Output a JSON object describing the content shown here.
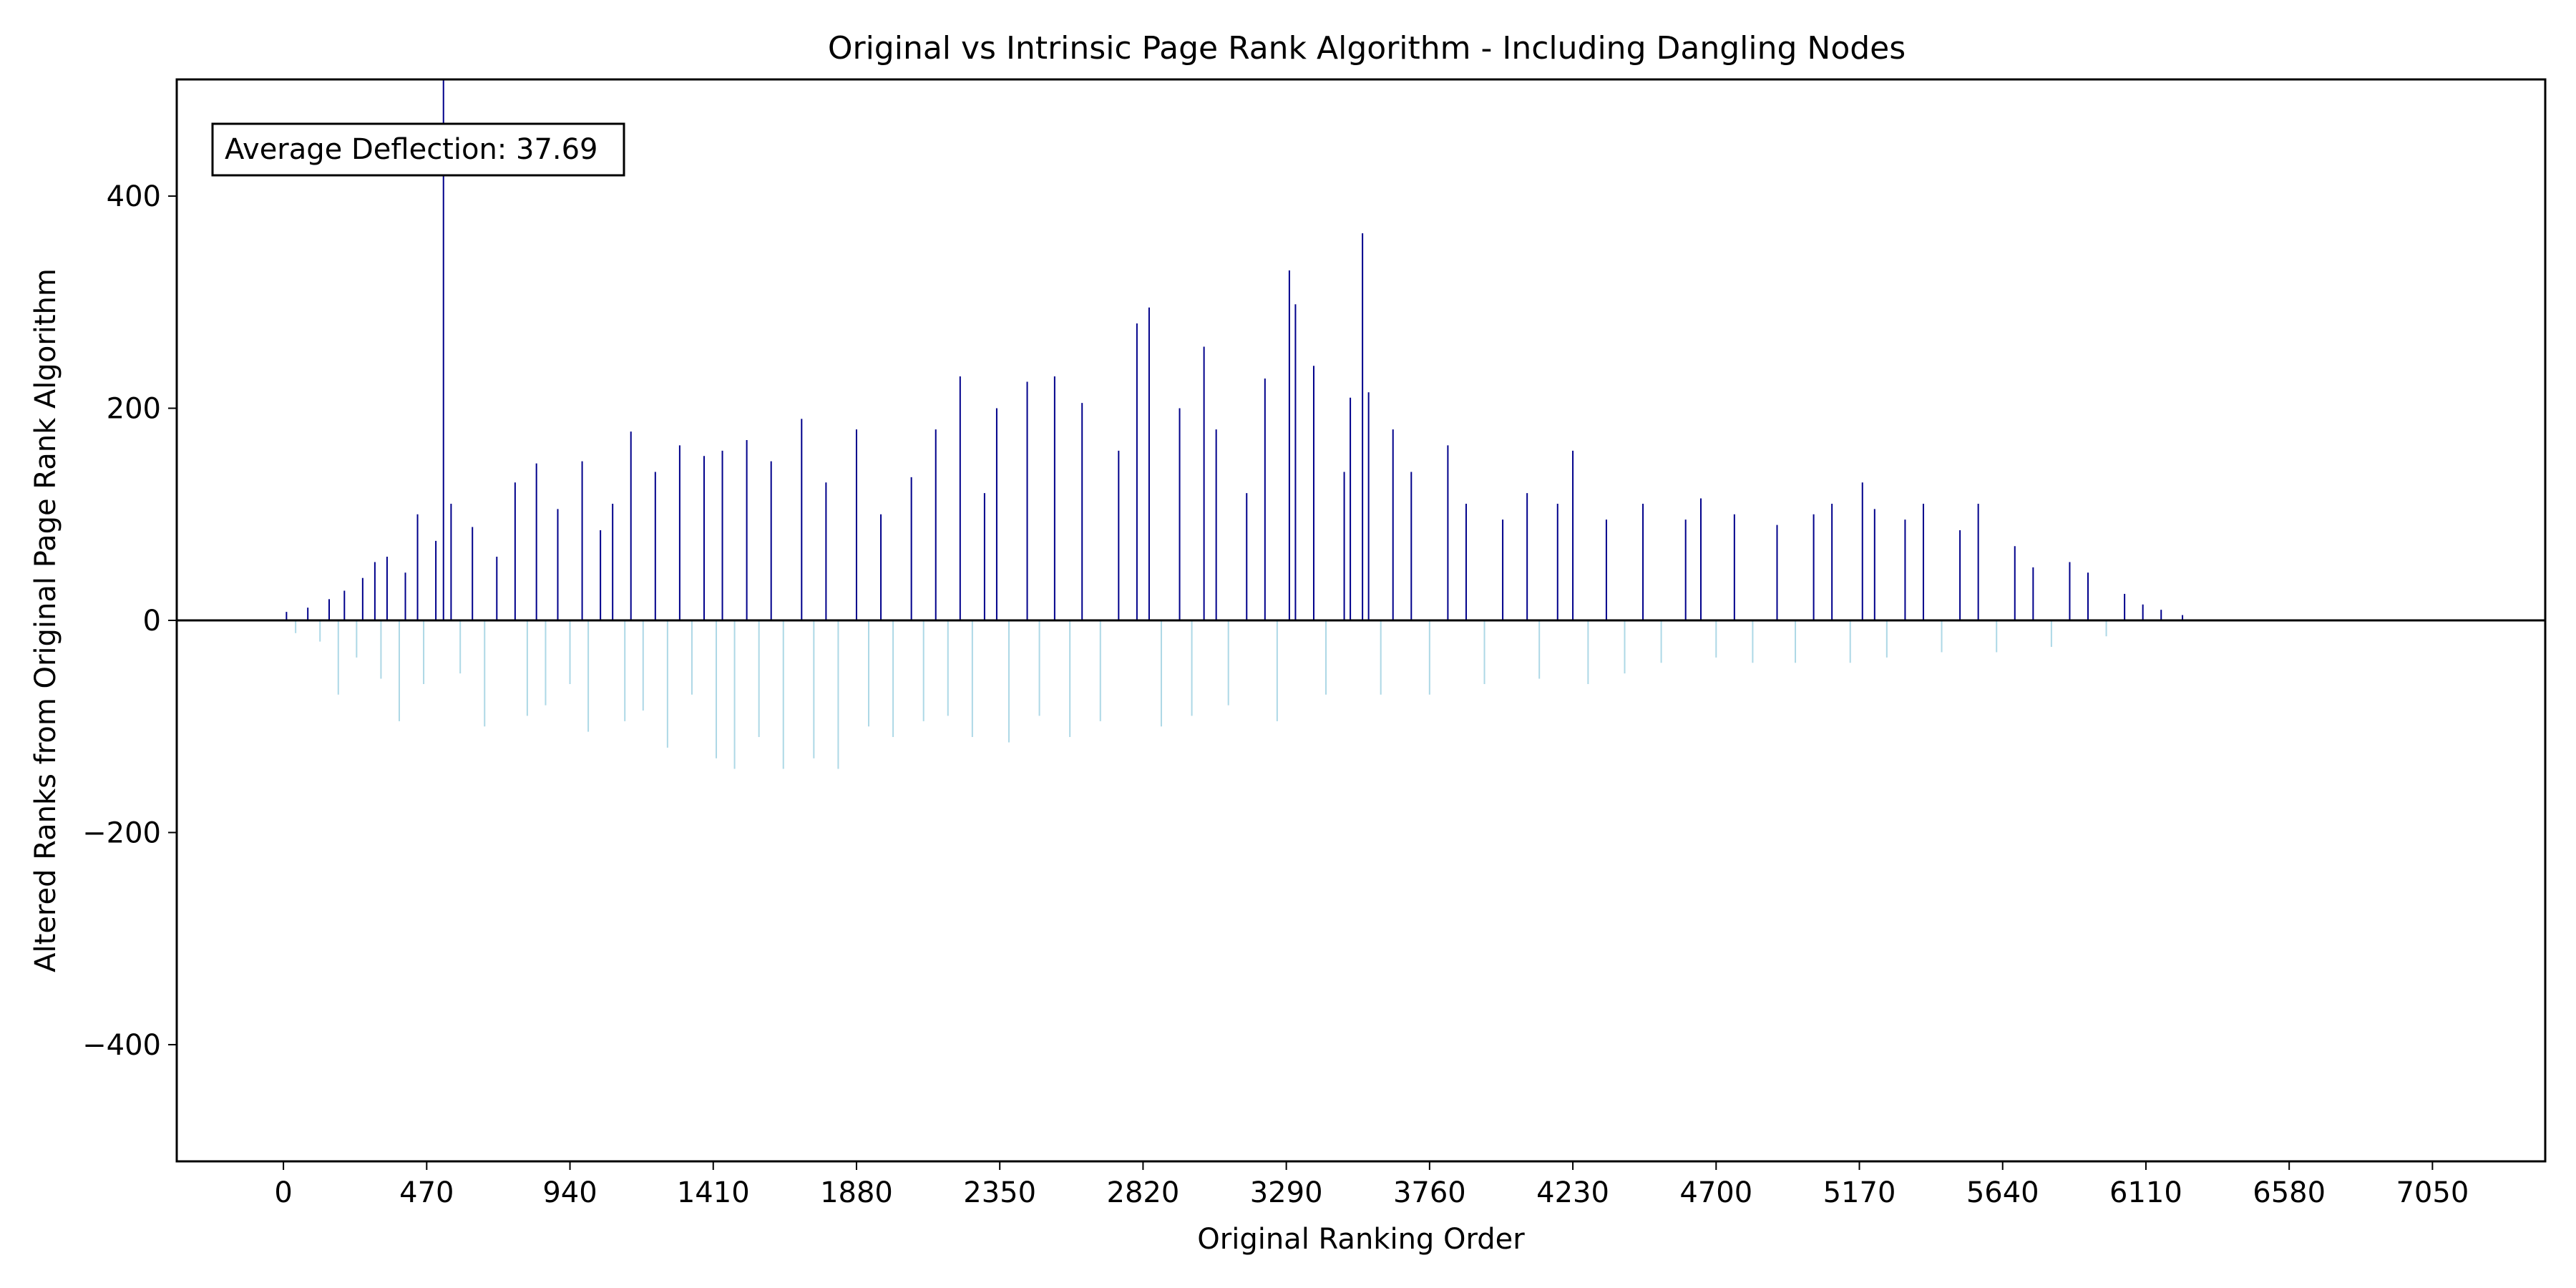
{
  "chart_data": {
    "type": "bar",
    "title": "Original vs Intrinsic Page Rank Algorithm - Including Dangling Nodes",
    "xlabel": "Original Ranking Order",
    "ylabel": "Altered Ranks from Original Page Rank Algorithm",
    "xlim": [
      -350,
      7420
    ],
    "ylim": [
      -510,
      510
    ],
    "xticks": [
      0,
      470,
      940,
      1410,
      1880,
      2350,
      2820,
      3290,
      3760,
      4230,
      4700,
      5170,
      5640,
      6110,
      6580,
      7050
    ],
    "yticks": [
      -400,
      -200,
      0,
      200,
      400
    ],
    "xtick_labels": [
      "0",
      "470",
      "940",
      "1410",
      "1880",
      "2350",
      "2820",
      "3290",
      "3760",
      "4230",
      "4700",
      "5170",
      "5640",
      "6110",
      "6580",
      "7050"
    ],
    "ytick_labels": [
      "−400",
      "−200",
      "0",
      "200",
      "400"
    ],
    "grid": false,
    "annotation": "Average Deflection: 37.69",
    "colors": {
      "positive": "#00008b",
      "negative": "#add8e6",
      "zero_line": "#000000"
    },
    "series": [
      {
        "values": [
          [
            10,
            8
          ],
          [
            40,
            -12
          ],
          [
            80,
            12
          ],
          [
            120,
            -20
          ],
          [
            150,
            20
          ],
          [
            180,
            -70
          ],
          [
            200,
            28
          ],
          [
            240,
            -35
          ],
          [
            260,
            40
          ],
          [
            300,
            55
          ],
          [
            320,
            -55
          ],
          [
            340,
            60
          ],
          [
            380,
            -95
          ],
          [
            400,
            45
          ],
          [
            440,
            100
          ],
          [
            460,
            -60
          ],
          [
            500,
            75
          ],
          [
            525,
            560
          ],
          [
            550,
            110
          ],
          [
            580,
            -50
          ],
          [
            620,
            88
          ],
          [
            660,
            -100
          ],
          [
            700,
            60
          ],
          [
            760,
            130
          ],
          [
            800,
            -90
          ],
          [
            830,
            148
          ],
          [
            860,
            -80
          ],
          [
            900,
            105
          ],
          [
            940,
            -60
          ],
          [
            980,
            150
          ],
          [
            1000,
            -105
          ],
          [
            1040,
            85
          ],
          [
            1080,
            110
          ],
          [
            1120,
            -95
          ],
          [
            1140,
            178
          ],
          [
            1180,
            -85
          ],
          [
            1220,
            140
          ],
          [
            1260,
            -120
          ],
          [
            1300,
            165
          ],
          [
            1340,
            -70
          ],
          [
            1380,
            155
          ],
          [
            1420,
            -130
          ],
          [
            1440,
            160
          ],
          [
            1480,
            -140
          ],
          [
            1520,
            170
          ],
          [
            1560,
            -110
          ],
          [
            1600,
            150
          ],
          [
            1640,
            -140
          ],
          [
            1700,
            190
          ],
          [
            1740,
            -130
          ],
          [
            1780,
            130
          ],
          [
            1820,
            -140
          ],
          [
            1880,
            180
          ],
          [
            1920,
            -100
          ],
          [
            1960,
            100
          ],
          [
            2000,
            -110
          ],
          [
            2060,
            135
          ],
          [
            2100,
            -95
          ],
          [
            2140,
            180
          ],
          [
            2180,
            -90
          ],
          [
            2220,
            230
          ],
          [
            2260,
            -110
          ],
          [
            2300,
            120
          ],
          [
            2340,
            200
          ],
          [
            2380,
            -115
          ],
          [
            2440,
            225
          ],
          [
            2480,
            -90
          ],
          [
            2530,
            230
          ],
          [
            2580,
            -110
          ],
          [
            2620,
            205
          ],
          [
            2680,
            -95
          ],
          [
            2740,
            160
          ],
          [
            2800,
            280
          ],
          [
            2840,
            295
          ],
          [
            2880,
            -100
          ],
          [
            2940,
            200
          ],
          [
            2980,
            -90
          ],
          [
            3020,
            258
          ],
          [
            3060,
            180
          ],
          [
            3100,
            -80
          ],
          [
            3160,
            120
          ],
          [
            3220,
            228
          ],
          [
            3260,
            -95
          ],
          [
            3300,
            330
          ],
          [
            3320,
            298
          ],
          [
            3380,
            240
          ],
          [
            3420,
            -70
          ],
          [
            3480,
            140
          ],
          [
            3500,
            210
          ],
          [
            3540,
            365
          ],
          [
            3560,
            215
          ],
          [
            3600,
            -70
          ],
          [
            3640,
            180
          ],
          [
            3700,
            140
          ],
          [
            3760,
            -70
          ],
          [
            3820,
            165
          ],
          [
            3880,
            110
          ],
          [
            3940,
            -60
          ],
          [
            4000,
            95
          ],
          [
            4080,
            120
          ],
          [
            4120,
            -55
          ],
          [
            4180,
            110
          ],
          [
            4230,
            160
          ],
          [
            4280,
            -60
          ],
          [
            4340,
            95
          ],
          [
            4400,
            -50
          ],
          [
            4460,
            110
          ],
          [
            4520,
            -40
          ],
          [
            4600,
            95
          ],
          [
            4650,
            115
          ],
          [
            4700,
            -35
          ],
          [
            4760,
            100
          ],
          [
            4820,
            -40
          ],
          [
            4900,
            90
          ],
          [
            4960,
            -40
          ],
          [
            5020,
            100
          ],
          [
            5080,
            110
          ],
          [
            5140,
            -40
          ],
          [
            5180,
            130
          ],
          [
            5220,
            105
          ],
          [
            5260,
            -35
          ],
          [
            5320,
            95
          ],
          [
            5380,
            110
          ],
          [
            5440,
            -30
          ],
          [
            5500,
            85
          ],
          [
            5560,
            110
          ],
          [
            5620,
            -30
          ],
          [
            5680,
            70
          ],
          [
            5740,
            50
          ],
          [
            5800,
            -25
          ],
          [
            5860,
            55
          ],
          [
            5920,
            45
          ],
          [
            5980,
            -15
          ],
          [
            6040,
            25
          ],
          [
            6100,
            15
          ],
          [
            6160,
            10
          ],
          [
            6230,
            5
          ]
        ]
      }
    ]
  }
}
